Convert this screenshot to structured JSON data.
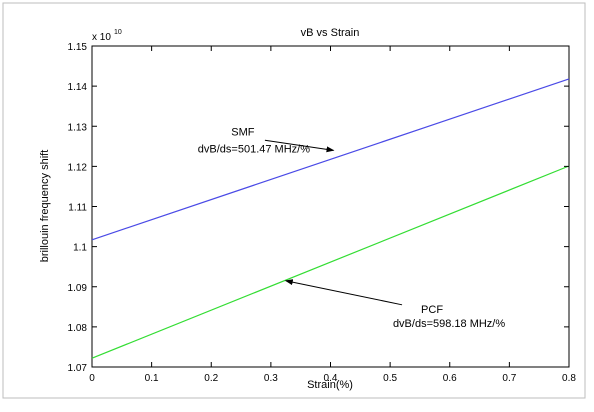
{
  "chart_data": {
    "type": "line",
    "title": "vB vs Strain",
    "xlabel": "Strain(%)",
    "ylabel": "brillouin frequency shift",
    "y_exponent_label": "x 10",
    "y_exponent_power": "10",
    "xlim": [
      0,
      0.8
    ],
    "ylim": [
      1.07,
      1.15
    ],
    "x_ticks": [
      "0",
      "0.1",
      "0.2",
      "0.3",
      "0.4",
      "0.5",
      "0.6",
      "0.7",
      "0.8"
    ],
    "y_ticks": [
      "1.07",
      "1.08",
      "1.09",
      "1.1",
      "1.11",
      "1.12",
      "1.13",
      "1.14",
      "1.15"
    ],
    "grid": false,
    "series": [
      {
        "color": "#4a4ae6",
        "x": [
          0,
          0.8
        ],
        "y": [
          1.1017,
          1.1418
        ]
      },
      {
        "color": "#33dd33",
        "x": [
          0,
          0.8
        ],
        "y": [
          1.0722,
          1.1201
        ]
      }
    ],
    "annotations": [
      {
        "label": "SMF",
        "slope_text": "dvB/ds=501.47 MHz/%",
        "arrow_from": [
          0.29,
          1.1265
        ],
        "arrow_to": [
          0.405,
          1.124
        ]
      },
      {
        "label": "PCF",
        "slope_text": "dvB/ds=598.18 MHz/%",
        "arrow_from": [
          0.52,
          1.0855
        ],
        "arrow_to": [
          0.325,
          1.0915
        ]
      }
    ]
  }
}
